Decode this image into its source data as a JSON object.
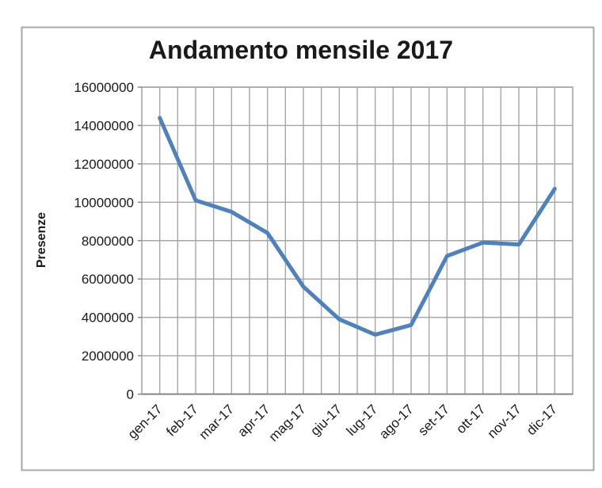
{
  "chart_data": {
    "type": "line",
    "title": "Andamento mensile 2017",
    "ylabel": "Presenze",
    "xlabel": "",
    "categories": [
      "gen-17",
      "feb-17",
      "mar-17",
      "apr-17",
      "mag-17",
      "giu-17",
      "lug-17",
      "ago-17",
      "set-17",
      "ott-17",
      "nov-17",
      "dic-17"
    ],
    "values": [
      14400000,
      10100000,
      9500000,
      8400000,
      5600000,
      3900000,
      3100000,
      3600000,
      7200000,
      7900000,
      7800000,
      10700000
    ],
    "ylim": [
      0,
      16000000
    ],
    "ytick_step": 2000000,
    "ytick_values": [
      0,
      2000000,
      4000000,
      6000000,
      8000000,
      10000000,
      12000000,
      14000000,
      16000000
    ],
    "ytick_labels": [
      "0",
      "2000000",
      "4000000",
      "6000000",
      "8000000",
      "10000000",
      "12000000",
      "14000000",
      "16000000"
    ],
    "grid": {
      "horizontal": "major",
      "vertical": "half-category"
    },
    "legend": "none",
    "markers": "none",
    "colors": {
      "line": "#4F81BD",
      "gridline": "#A6A6A6",
      "axis": "#808080",
      "frame_border": "#A9A9A9",
      "text": "#1a1a1a",
      "background": "#FFFFFF"
    }
  }
}
